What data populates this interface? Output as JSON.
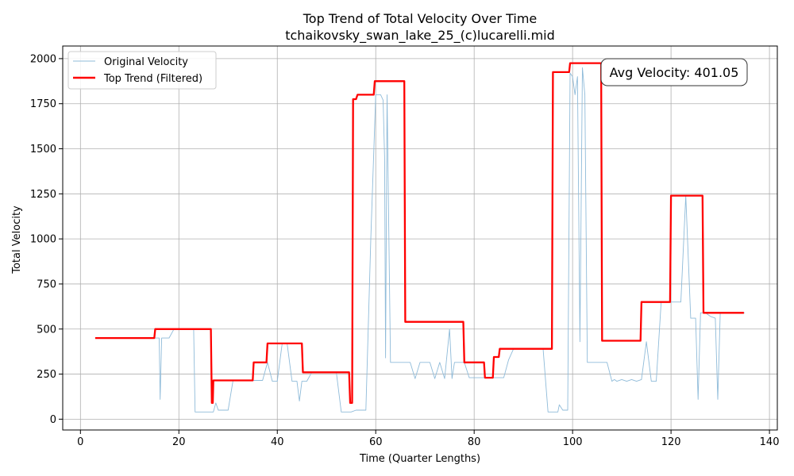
{
  "chart_data": {
    "type": "line",
    "title": "Top Trend of Total Velocity Over Time",
    "subtitle": "tchaikovsky_swan_lake_25_(c)lucarelli.mid",
    "xlabel": "Time (Quarter Lengths)",
    "ylabel": "Total Velocity",
    "xlim": [
      -3.6,
      141.6
    ],
    "ylim": [
      -60,
      2070
    ],
    "xticks": [
      0,
      20,
      40,
      60,
      80,
      100,
      120,
      140
    ],
    "yticks": [
      0,
      250,
      500,
      750,
      1000,
      1250,
      1500,
      1750,
      2000
    ],
    "grid": true,
    "legend_position": "top-left",
    "annotation": "Avg Velocity: 401.05",
    "colors": {
      "original": "#8fbbd9",
      "trend": "#ff0000"
    },
    "series": [
      {
        "name": "Original Velocity",
        "x": [
          3,
          15,
          16,
          16.2,
          16.5,
          17,
          18,
          19,
          23,
          23.3,
          26,
          27,
          27.5,
          28,
          30,
          31,
          35,
          36,
          37,
          38,
          39,
          40,
          41,
          42,
          43,
          44,
          44.5,
          45,
          46,
          47,
          52,
          53,
          54,
          55,
          56,
          58,
          59,
          60,
          61,
          61.5,
          61.8,
          62,
          62.3,
          63,
          66,
          67,
          68,
          69,
          70,
          71,
          72,
          73,
          74,
          75,
          75.5,
          76,
          78,
          79,
          80,
          85,
          86,
          87,
          88,
          94,
          95,
          96,
          97,
          97.3,
          98,
          99,
          99.5,
          100,
          100.5,
          101,
          101.5,
          102,
          102.5,
          103,
          104,
          106,
          107,
          108,
          108.5,
          109,
          110,
          111,
          112,
          113,
          114,
          115,
          116,
          117,
          118,
          120,
          122,
          123,
          124,
          125,
          125.5,
          126,
          127,
          128,
          129,
          129.5,
          130,
          131,
          135
        ],
        "y": [
          450,
          450,
          450,
          110,
          450,
          450,
          450,
          500,
          500,
          40,
          40,
          40,
          90,
          50,
          50,
          215,
          215,
          215,
          215,
          315,
          210,
          210,
          420,
          420,
          210,
          210,
          100,
          210,
          210,
          260,
          260,
          40,
          40,
          40,
          50,
          50,
          1000,
          1800,
          1800,
          1770,
          1450,
          340,
          1800,
          315,
          315,
          315,
          225,
          315,
          315,
          315,
          225,
          315,
          225,
          500,
          225,
          315,
          315,
          230,
          230,
          230,
          230,
          330,
          390,
          390,
          40,
          40,
          40,
          80,
          50,
          50,
          1920,
          1900,
          1800,
          1900,
          430,
          1950,
          1800,
          315,
          315,
          315,
          315,
          210,
          220,
          210,
          220,
          210,
          220,
          210,
          220,
          430,
          210,
          210,
          650,
          650,
          650,
          1240,
          560,
          560,
          110,
          590,
          590,
          570,
          560,
          110,
          590,
          590,
          590
        ]
      },
      {
        "name": "Top Trend (Filtered)",
        "x": [
          3,
          15,
          15.2,
          26.5,
          26.7,
          26.9,
          27,
          27.2,
          35,
          35.2,
          37.8,
          38,
          45,
          45.2,
          54.6,
          54.8,
          55.2,
          55.4,
          56,
          56.3,
          59.6,
          59.8,
          65.8,
          66,
          77.8,
          78,
          82,
          82.2,
          83.8,
          84,
          85,
          85.2,
          95.8,
          96,
          99.3,
          99.5,
          105.8,
          106,
          113.8,
          114,
          119.8,
          120,
          126.4,
          126.6,
          134.8
        ],
        "y": [
          450,
          450,
          500,
          500,
          90,
          90,
          215,
          215,
          215,
          315,
          315,
          420,
          420,
          260,
          260,
          90,
          90,
          1775,
          1775,
          1800,
          1800,
          1875,
          1875,
          540,
          540,
          315,
          315,
          230,
          230,
          345,
          345,
          390,
          390,
          1925,
          1925,
          1975,
          1975,
          435,
          435,
          650,
          650,
          1240,
          1240,
          590,
          590
        ]
      }
    ]
  }
}
